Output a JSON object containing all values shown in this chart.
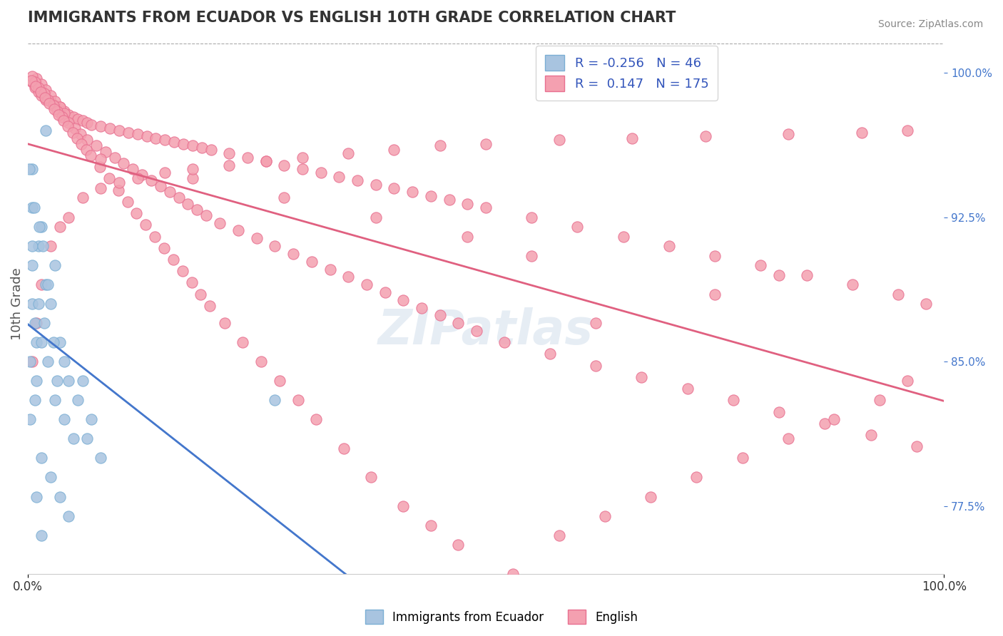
{
  "title": "IMMIGRANTS FROM ECUADOR VS ENGLISH 10TH GRADE CORRELATION CHART",
  "source_text": "Source: ZipAtlas.com",
  "xlabel_left": "Immigrants from Ecuador",
  "xlabel_right": "English",
  "ylabel": "10th Grade",
  "x_min": 0.0,
  "x_max": 1.0,
  "y_min": 0.74,
  "y_max": 1.02,
  "right_yticks": [
    0.775,
    0.85,
    0.925,
    1.0
  ],
  "right_yticklabels": [
    "77.5%",
    "85.0%",
    "92.5%",
    "100.0%"
  ],
  "xtick_labels": [
    "0.0%",
    "100.0%"
  ],
  "xtick_positions": [
    0.0,
    1.0
  ],
  "blue_R": -0.256,
  "blue_N": 46,
  "pink_R": 0.147,
  "pink_N": 175,
  "blue_color": "#a8c4e0",
  "blue_edge_color": "#7bafd4",
  "pink_color": "#f4a0b0",
  "pink_edge_color": "#e87090",
  "blue_line_color": "#4477cc",
  "pink_line_color": "#e06080",
  "legend_R_color": "#3355bb",
  "watermark": "ZIPatlas",
  "blue_scatter_x": [
    0.02,
    0.005,
    0.005,
    0.01,
    0.015,
    0.005,
    0.003,
    0.008,
    0.012,
    0.02,
    0.025,
    0.035,
    0.04,
    0.03,
    0.045,
    0.005,
    0.01,
    0.015,
    0.008,
    0.003,
    0.005,
    0.012,
    0.018,
    0.022,
    0.03,
    0.04,
    0.05,
    0.06,
    0.055,
    0.07,
    0.065,
    0.08,
    0.01,
    0.015,
    0.025,
    0.035,
    0.045,
    0.002,
    0.007,
    0.013,
    0.017,
    0.022,
    0.028,
    0.032,
    0.27,
    0.015
  ],
  "blue_scatter_y": [
    0.97,
    0.9,
    0.88,
    0.86,
    0.92,
    0.95,
    0.85,
    0.87,
    0.91,
    0.89,
    0.88,
    0.86,
    0.85,
    0.9,
    0.84,
    0.93,
    0.84,
    0.86,
    0.83,
    0.82,
    0.91,
    0.88,
    0.87,
    0.85,
    0.83,
    0.82,
    0.81,
    0.84,
    0.83,
    0.82,
    0.81,
    0.8,
    0.78,
    0.76,
    0.79,
    0.78,
    0.77,
    0.95,
    0.93,
    0.92,
    0.91,
    0.89,
    0.86,
    0.84,
    0.83,
    0.8
  ],
  "pink_scatter_x": [
    0.005,
    0.008,
    0.012,
    0.015,
    0.02,
    0.025,
    0.03,
    0.035,
    0.04,
    0.045,
    0.05,
    0.055,
    0.06,
    0.065,
    0.07,
    0.08,
    0.09,
    0.1,
    0.11,
    0.12,
    0.13,
    0.14,
    0.15,
    0.16,
    0.17,
    0.18,
    0.19,
    0.2,
    0.22,
    0.24,
    0.26,
    0.28,
    0.3,
    0.32,
    0.34,
    0.36,
    0.38,
    0.4,
    0.42,
    0.44,
    0.46,
    0.48,
    0.5,
    0.55,
    0.6,
    0.65,
    0.7,
    0.75,
    0.8,
    0.85,
    0.9,
    0.95,
    0.98,
    0.01,
    0.015,
    0.02,
    0.025,
    0.03,
    0.035,
    0.04,
    0.005,
    0.008,
    0.012,
    0.018,
    0.022,
    0.028,
    0.032,
    0.038,
    0.045,
    0.052,
    0.058,
    0.065,
    0.075,
    0.085,
    0.095,
    0.105,
    0.115,
    0.125,
    0.135,
    0.145,
    0.155,
    0.165,
    0.175,
    0.185,
    0.195,
    0.21,
    0.23,
    0.25,
    0.27,
    0.29,
    0.31,
    0.33,
    0.35,
    0.37,
    0.39,
    0.41,
    0.43,
    0.45,
    0.47,
    0.49,
    0.52,
    0.57,
    0.62,
    0.67,
    0.72,
    0.77,
    0.82,
    0.87,
    0.92,
    0.97,
    0.004,
    0.009,
    0.014,
    0.019,
    0.024,
    0.029,
    0.034,
    0.039,
    0.044,
    0.049,
    0.054,
    0.059,
    0.064,
    0.069,
    0.079,
    0.089,
    0.099,
    0.109,
    0.119,
    0.129,
    0.139,
    0.149,
    0.159,
    0.169,
    0.179,
    0.189,
    0.199,
    0.215,
    0.235,
    0.255,
    0.275,
    0.295,
    0.315,
    0.345,
    0.375,
    0.41,
    0.44,
    0.47,
    0.53,
    0.58,
    0.63,
    0.68,
    0.73,
    0.78,
    0.83,
    0.88,
    0.93,
    0.96,
    0.62,
    0.75,
    0.82,
    0.55,
    0.48,
    0.38,
    0.28,
    0.18,
    0.08,
    0.005,
    0.01,
    0.015,
    0.025,
    0.035,
    0.045,
    0.06,
    0.08,
    0.1,
    0.12,
    0.15,
    0.18,
    0.22,
    0.26,
    0.3,
    0.35,
    0.4,
    0.45,
    0.5,
    0.58,
    0.66,
    0.74,
    0.83,
    0.91,
    0.96
  ],
  "pink_scatter_y": [
    0.995,
    0.992,
    0.99,
    0.988,
    0.986,
    0.985,
    0.983,
    0.982,
    0.98,
    0.978,
    0.977,
    0.976,
    0.975,
    0.974,
    0.973,
    0.972,
    0.971,
    0.97,
    0.969,
    0.968,
    0.967,
    0.966,
    0.965,
    0.964,
    0.963,
    0.962,
    0.961,
    0.96,
    0.958,
    0.956,
    0.954,
    0.952,
    0.95,
    0.948,
    0.946,
    0.944,
    0.942,
    0.94,
    0.938,
    0.936,
    0.934,
    0.932,
    0.93,
    0.925,
    0.92,
    0.915,
    0.91,
    0.905,
    0.9,
    0.895,
    0.89,
    0.885,
    0.88,
    0.997,
    0.994,
    0.991,
    0.988,
    0.985,
    0.982,
    0.979,
    0.998,
    0.995,
    0.992,
    0.989,
    0.986,
    0.983,
    0.98,
    0.977,
    0.974,
    0.971,
    0.968,
    0.965,
    0.962,
    0.959,
    0.956,
    0.953,
    0.95,
    0.947,
    0.944,
    0.941,
    0.938,
    0.935,
    0.932,
    0.929,
    0.926,
    0.922,
    0.918,
    0.914,
    0.91,
    0.906,
    0.902,
    0.898,
    0.894,
    0.89,
    0.886,
    0.882,
    0.878,
    0.874,
    0.87,
    0.866,
    0.86,
    0.854,
    0.848,
    0.842,
    0.836,
    0.83,
    0.824,
    0.818,
    0.812,
    0.806,
    0.996,
    0.993,
    0.99,
    0.987,
    0.984,
    0.981,
    0.978,
    0.975,
    0.972,
    0.969,
    0.966,
    0.963,
    0.96,
    0.957,
    0.951,
    0.945,
    0.939,
    0.933,
    0.927,
    0.921,
    0.915,
    0.909,
    0.903,
    0.897,
    0.891,
    0.885,
    0.879,
    0.87,
    0.86,
    0.85,
    0.84,
    0.83,
    0.82,
    0.805,
    0.79,
    0.775,
    0.765,
    0.755,
    0.74,
    0.76,
    0.77,
    0.78,
    0.79,
    0.8,
    0.81,
    0.82,
    0.83,
    0.84,
    0.87,
    0.885,
    0.895,
    0.905,
    0.915,
    0.925,
    0.935,
    0.945,
    0.955,
    0.85,
    0.87,
    0.89,
    0.91,
    0.92,
    0.925,
    0.935,
    0.94,
    0.943,
    0.945,
    0.948,
    0.95,
    0.952,
    0.954,
    0.956,
    0.958,
    0.96,
    0.962,
    0.963,
    0.965,
    0.966,
    0.967,
    0.968,
    0.969,
    0.97
  ]
}
